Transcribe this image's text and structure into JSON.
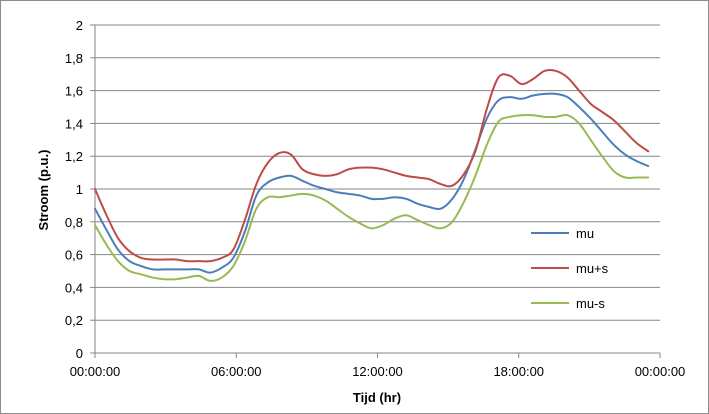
{
  "chart_data": {
    "type": "line",
    "title": "",
    "xlabel": "Tijd (hr)",
    "ylabel": "Stroom (p.u.)",
    "xlim": [
      0,
      24
    ],
    "ylim": [
      0,
      2
    ],
    "x_ticks": [
      0,
      6,
      12,
      18,
      24
    ],
    "x_tick_labels": [
      "00:00:00",
      "06:00:00",
      "12:00:00",
      "18:00:00",
      "00:00:00"
    ],
    "y_ticks": [
      0,
      0.2,
      0.4,
      0.6,
      0.8,
      1,
      1.2,
      1.4,
      1.6,
      1.8,
      2
    ],
    "y_tick_labels": [
      "0",
      "0,2",
      "0,4",
      "0,6",
      "0,8",
      "1",
      "1,2",
      "1,4",
      "1,6",
      "1,8",
      "2"
    ],
    "grid": "horizontal",
    "legend_position": "right",
    "x": [
      0,
      0.5,
      1,
      1.5,
      2,
      2.5,
      3,
      3.5,
      4,
      4.5,
      5,
      5.5,
      6,
      6.5,
      7,
      7.5,
      8,
      8.5,
      9,
      9.5,
      10,
      10.5,
      11,
      11.5,
      12,
      12.5,
      13,
      13.5,
      14,
      14.5,
      15,
      15.5,
      16,
      16.5,
      17,
      17.5,
      18,
      18.5,
      19,
      19.5,
      20,
      20.5,
      21,
      21.5,
      22,
      22.5,
      23,
      23.5,
      24
    ],
    "series": [
      {
        "name": "mu",
        "color": "#4a7ebb",
        "values": [
          0.88,
          0.75,
          0.63,
          0.56,
          0.53,
          0.51,
          0.51,
          0.51,
          0.51,
          0.51,
          0.49,
          0.52,
          0.58,
          0.74,
          0.96,
          1.04,
          1.07,
          1.08,
          1.05,
          1.02,
          1.0,
          0.98,
          0.97,
          0.96,
          0.94,
          0.94,
          0.95,
          0.94,
          0.91,
          0.89,
          0.88,
          0.94,
          1.06,
          1.24,
          1.43,
          1.54,
          1.56,
          1.55,
          1.57,
          1.58,
          1.58,
          1.56,
          1.5,
          1.43,
          1.35,
          1.27,
          1.21,
          1.17,
          1.14
        ]
      },
      {
        "name": "mu+s",
        "color": "#be4b48",
        "values": [
          1.0,
          0.84,
          0.7,
          0.62,
          0.58,
          0.57,
          0.57,
          0.57,
          0.56,
          0.56,
          0.56,
          0.58,
          0.63,
          0.81,
          1.03,
          1.16,
          1.22,
          1.21,
          1.12,
          1.09,
          1.08,
          1.09,
          1.12,
          1.13,
          1.13,
          1.12,
          1.1,
          1.08,
          1.07,
          1.06,
          1.03,
          1.02,
          1.09,
          1.23,
          1.49,
          1.68,
          1.69,
          1.64,
          1.67,
          1.72,
          1.72,
          1.68,
          1.6,
          1.52,
          1.47,
          1.42,
          1.35,
          1.28,
          1.23
        ]
      },
      {
        "name": "mu-s",
        "color": "#98b954",
        "values": [
          0.78,
          0.66,
          0.56,
          0.5,
          0.48,
          0.46,
          0.45,
          0.45,
          0.46,
          0.47,
          0.44,
          0.46,
          0.53,
          0.68,
          0.88,
          0.95,
          0.95,
          0.96,
          0.97,
          0.96,
          0.93,
          0.88,
          0.83,
          0.79,
          0.76,
          0.78,
          0.82,
          0.84,
          0.81,
          0.78,
          0.76,
          0.8,
          0.92,
          1.08,
          1.27,
          1.41,
          1.44,
          1.45,
          1.45,
          1.44,
          1.44,
          1.45,
          1.4,
          1.3,
          1.2,
          1.11,
          1.07,
          1.07,
          1.07
        ]
      }
    ]
  }
}
